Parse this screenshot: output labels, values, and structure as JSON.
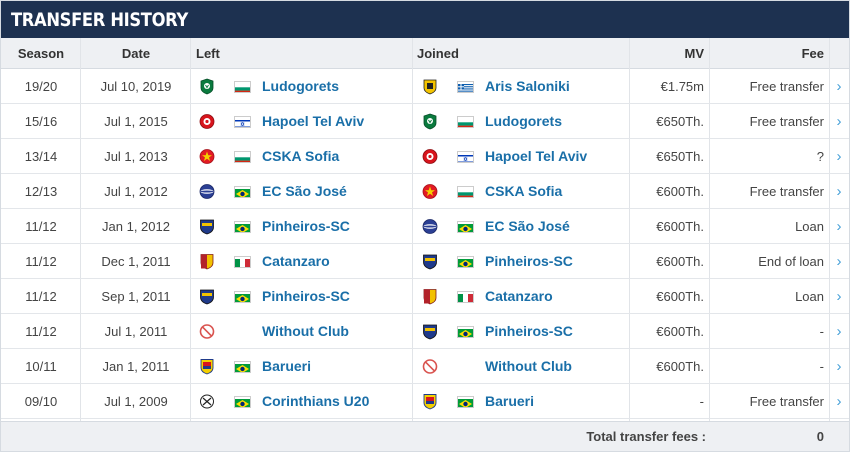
{
  "title": "TRANSFER HISTORY",
  "columns": {
    "season": "Season",
    "date": "Date",
    "left": "Left",
    "joined": "Joined",
    "mv": "MV",
    "fee": "Fee"
  },
  "flag_colors": {
    "bulgaria": [
      "#ffffff",
      "#00966e",
      "#d62612"
    ],
    "greece": "#0d5eaf",
    "israel": "#0038b8",
    "brazil": [
      "#009b3a",
      "#fedf00",
      "#002776"
    ],
    "italy": [
      "#009246",
      "#ffffff",
      "#ce2b37"
    ]
  },
  "transfers": [
    {
      "season": "19/20",
      "date": "Jul 10, 2019",
      "left_club": "Ludogorets",
      "left_crest": "ludogorets-crest-icon",
      "left_flag": "bulgaria",
      "joined_club": "Aris Saloniki",
      "joined_crest": "aris-crest-icon",
      "joined_flag": "greece",
      "mv": "€1.75m",
      "fee": "Free transfer",
      "arrow": "›"
    },
    {
      "season": "15/16",
      "date": "Jul 1, 2015",
      "left_club": "Hapoel Tel Aviv",
      "left_crest": "hapoel-crest-icon",
      "left_flag": "israel",
      "joined_club": "Ludogorets",
      "joined_crest": "ludogorets-crest-icon",
      "joined_flag": "bulgaria",
      "mv": "€650Th.",
      "fee": "Free transfer",
      "arrow": "›"
    },
    {
      "season": "13/14",
      "date": "Jul 1, 2013",
      "left_club": "CSKA Sofia",
      "left_crest": "cska-crest-icon",
      "left_flag": "bulgaria",
      "joined_club": "Hapoel Tel Aviv",
      "joined_crest": "hapoel-crest-icon",
      "joined_flag": "israel",
      "mv": "€650Th.",
      "fee": "?",
      "arrow": "›"
    },
    {
      "season": "12/13",
      "date": "Jul 1, 2012",
      "left_club": "EC São José",
      "left_crest": "sao-jose-crest-icon",
      "left_flag": "brazil",
      "joined_club": "CSKA Sofia",
      "joined_crest": "cska-crest-icon",
      "joined_flag": "bulgaria",
      "mv": "€600Th.",
      "fee": "Free transfer",
      "arrow": "›"
    },
    {
      "season": "11/12",
      "date": "Jan 1, 2012",
      "left_club": "Pinheiros-SC",
      "left_crest": "pinheiros-crest-icon",
      "left_flag": "brazil",
      "joined_club": "EC São José",
      "joined_crest": "sao-jose-crest-icon",
      "joined_flag": "brazil",
      "mv": "€600Th.",
      "fee": "Loan",
      "arrow": "›"
    },
    {
      "season": "11/12",
      "date": "Dec 1, 2011",
      "left_club": "Catanzaro",
      "left_crest": "catanzaro-crest-icon",
      "left_flag": "italy",
      "joined_club": "Pinheiros-SC",
      "joined_crest": "pinheiros-crest-icon",
      "joined_flag": "brazil",
      "mv": "€600Th.",
      "fee": "End of loan",
      "arrow": "›"
    },
    {
      "season": "11/12",
      "date": "Sep 1, 2011",
      "left_club": "Pinheiros-SC",
      "left_crest": "pinheiros-crest-icon",
      "left_flag": "brazil",
      "joined_club": "Catanzaro",
      "joined_crest": "catanzaro-crest-icon",
      "joined_flag": "italy",
      "mv": "€600Th.",
      "fee": "Loan",
      "arrow": "›"
    },
    {
      "season": "11/12",
      "date": "Jul 1, 2011",
      "left_club": "Without Club",
      "left_crest": "without-club-icon",
      "left_flag": "",
      "joined_club": "Pinheiros-SC",
      "joined_crest": "pinheiros-crest-icon",
      "joined_flag": "brazil",
      "mv": "€600Th.",
      "fee": "-",
      "arrow": "›"
    },
    {
      "season": "10/11",
      "date": "Jan 1, 2011",
      "left_club": "Barueri",
      "left_crest": "barueri-crest-icon",
      "left_flag": "brazil",
      "joined_club": "Without Club",
      "joined_crest": "without-club-icon",
      "joined_flag": "",
      "mv": "€600Th.",
      "fee": "-",
      "arrow": "›"
    },
    {
      "season": "09/10",
      "date": "Jul 1, 2009",
      "left_club": "Corinthians U20",
      "left_crest": "corinthians-crest-icon",
      "left_flag": "brazil",
      "joined_club": "Barueri",
      "joined_crest": "barueri-crest-icon",
      "joined_flag": "brazil",
      "mv": "-",
      "fee": "Free transfer",
      "arrow": "›"
    }
  ],
  "footer": {
    "label": "Total transfer fees :",
    "value": "0"
  }
}
